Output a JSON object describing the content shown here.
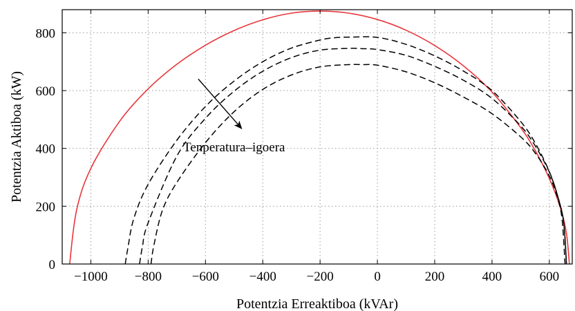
{
  "chart_data": {
    "type": "line",
    "title": "",
    "xlabel": "Potentzia Erreaktiboa (kVAr)",
    "ylabel": "Potentzia Aktiboa (kW)",
    "xlim": [
      -1100,
      680
    ],
    "ylim": [
      0,
      880
    ],
    "xticks": [
      -1000,
      -800,
      -600,
      -400,
      -200,
      0,
      200,
      400,
      600
    ],
    "xtick_labels": [
      "−1000",
      "−800",
      "−600",
      "−400",
      "−200",
      "0",
      "200",
      "400",
      "600"
    ],
    "yticks": [
      0,
      200,
      400,
      600,
      800
    ],
    "ytick_labels": [
      "0",
      "200",
      "400",
      "600",
      "800"
    ],
    "grid": true,
    "series": [
      {
        "style": "solid",
        "color": "#e8353b",
        "x": [
          -1074,
          -1050,
          -1000,
          -900,
          -800,
          -700,
          -600,
          -500,
          -400,
          -300,
          -200,
          -100,
          0,
          100,
          200,
          300,
          400,
          500,
          550,
          600,
          640,
          660,
          670
        ],
        "y": [
          0,
          185,
          331,
          493,
          606,
          691,
          757,
          808,
          845,
          868,
          875,
          868,
          846,
          809,
          756,
          686,
          595,
          472,
          394,
          296,
          190,
          105,
          0
        ]
      },
      {
        "style": "dashed",
        "color": "#000000",
        "x": [
          -880,
          -870,
          -850,
          -800,
          -700,
          -600,
          -500,
          -400,
          -300,
          -200,
          -150,
          -100,
          0,
          100,
          200,
          300,
          400,
          500,
          550,
          600,
          630,
          650,
          660
        ],
        "y": [
          0,
          60,
          158,
          276,
          428,
          545,
          633,
          700,
          747,
          775,
          783,
          785,
          784,
          760,
          720,
          668,
          600,
          493,
          420,
          320,
          232,
          145,
          0
        ]
      },
      {
        "style": "dashed",
        "color": "#000000",
        "x": [
          -830,
          -820,
          -800,
          -700,
          -600,
          -500,
          -400,
          -300,
          -200,
          -100,
          -50,
          0,
          100,
          200,
          300,
          400,
          500,
          550,
          600,
          630,
          650,
          660
        ],
        "y": [
          0,
          60,
          143,
          373,
          504,
          598,
          667,
          714,
          740,
          746,
          745,
          742,
          722,
          684,
          636,
          573,
          478,
          410,
          318,
          232,
          145,
          0
        ]
      },
      {
        "style": "dashed",
        "color": "#000000",
        "x": [
          -790,
          -780,
          -750,
          -700,
          -600,
          -500,
          -400,
          -300,
          -200,
          -100,
          -50,
          0,
          100,
          200,
          300,
          400,
          500,
          550,
          600,
          630,
          645,
          655
        ],
        "y": [
          0,
          65,
          186,
          282,
          420,
          527,
          604,
          654,
          682,
          690,
          690,
          688,
          665,
          627,
          578,
          520,
          440,
          385,
          305,
          225,
          150,
          0
        ]
      }
    ],
    "annotation": {
      "text": "Tenperatura–igoera",
      "x": -500,
      "y": 390,
      "arrow_from": [
        -625,
        640
      ],
      "arrow_to": [
        -475,
        470
      ]
    }
  }
}
